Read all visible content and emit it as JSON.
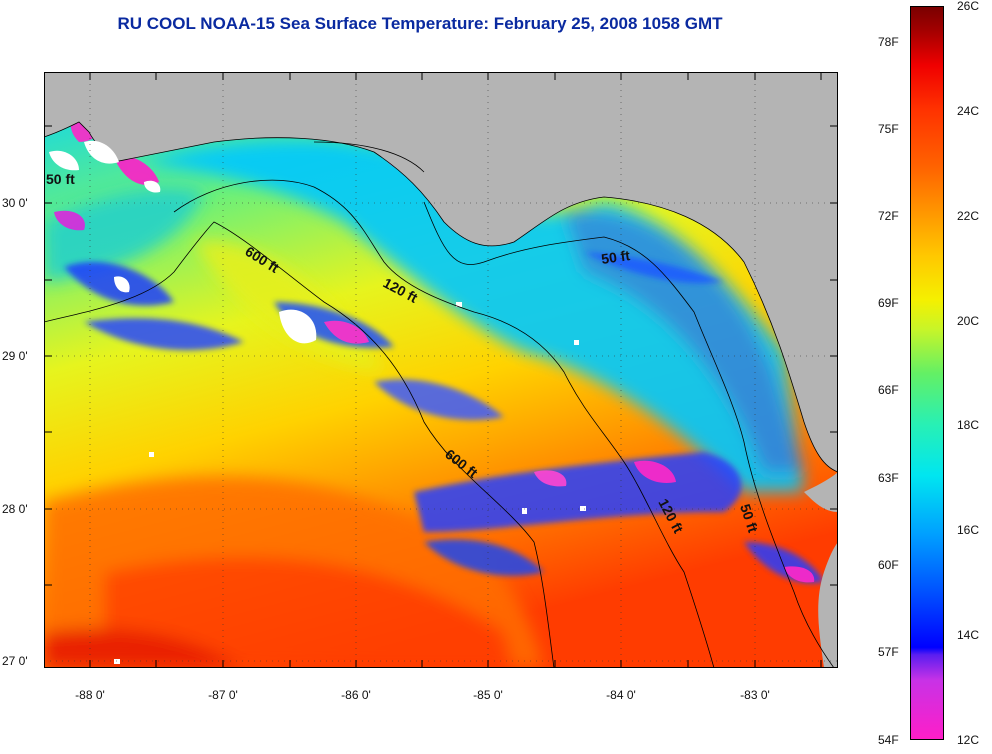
{
  "title": "RU COOL  NOAA-15  Sea Surface Temperature:  February 25, 2008 1058 GMT",
  "map": {
    "lat_labels": [
      "30 0'",
      "29 0'",
      "28 0'",
      "27 0'"
    ],
    "lon_labels": [
      "-88 0'",
      "-87 0'",
      "-86 0'",
      "-85 0'",
      "-84 0'",
      "-83 0'"
    ],
    "contour_labels": [
      "600 ft",
      "120 ft",
      "50 ft",
      "600 ft",
      "120 ft",
      "50 ft",
      "50 ft"
    ],
    "colors": {
      "land": "#b4b4b4",
      "cloud": "#ffffff",
      "contour": "#000000"
    }
  },
  "colorbar": {
    "fahrenheit_labels": [
      "78F",
      "75F",
      "72F",
      "69F",
      "66F",
      "63F",
      "60F",
      "57F",
      "54F"
    ],
    "celsius_labels": [
      "26C",
      "24C",
      "22C",
      "20C",
      "18C",
      "16C",
      "14C",
      "12C"
    ],
    "range_c": [
      12,
      26
    ]
  }
}
